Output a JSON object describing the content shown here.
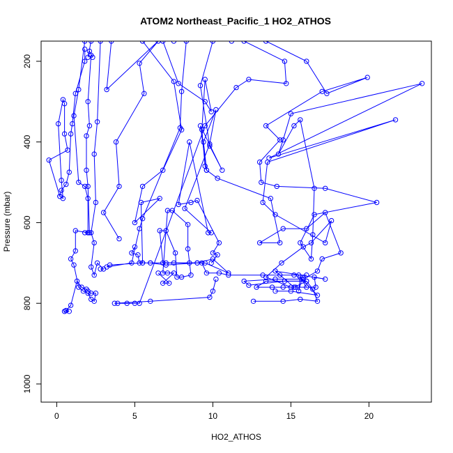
{
  "chart_data": {
    "type": "line",
    "title": "ATOM2 Northeast_Pacific_1 HO2_ATHOS",
    "xlabel": "HO2_ATHOS",
    "ylabel": "Pressure (mbar)",
    "xlim": [
      -1.0,
      24.0
    ],
    "ylim": [
      1045,
      150
    ],
    "y_inverted": true,
    "x_ticks": [
      0,
      5,
      10,
      15,
      20
    ],
    "y_ticks": [
      200,
      400,
      600,
      800,
      1000
    ],
    "grid": false,
    "legend": "none",
    "color": "#0000ff",
    "marker": "open-circle",
    "series": [
      {
        "values": [
          [
            1.8,
            150
          ],
          [
            1.4,
            270
          ],
          [
            1.1,
            335
          ],
          [
            1.4,
            500
          ],
          [
            1.8,
            510
          ],
          [
            2.0,
            540
          ],
          [
            2.0,
            625
          ],
          [
            1.2,
            620
          ],
          [
            1.2,
            670
          ],
          [
            0.9,
            690
          ],
          [
            1.1,
            705
          ],
          [
            1.4,
            760
          ],
          [
            1.7,
            770
          ],
          [
            2.0,
            775
          ],
          [
            2.2,
            790
          ],
          [
            2.4,
            795
          ],
          [
            2.5,
            775
          ],
          [
            2.2,
            775
          ],
          [
            2.0,
            770
          ],
          [
            1.9,
            765
          ],
          [
            1.6,
            760
          ],
          [
            1.3,
            745
          ],
          [
            0.9,
            805
          ],
          [
            0.6,
            818
          ],
          [
            0.5,
            820
          ],
          [
            0.6,
            818
          ],
          [
            0.8,
            820
          ],
          [
            0.5,
            820
          ]
        ]
      },
      {
        "values": [
          [
            2.8,
            150
          ],
          [
            2.6,
            350
          ],
          [
            2.4,
            430
          ],
          [
            2.5,
            550
          ],
          [
            2.2,
            625
          ],
          [
            2.4,
            650
          ],
          [
            2.2,
            710
          ],
          [
            2.4,
            730
          ],
          [
            2.6,
            700
          ],
          [
            3.0,
            715
          ],
          [
            2.8,
            715
          ]
        ]
      },
      {
        "values": [
          [
            1.8,
            170
          ],
          [
            1.8,
            200
          ],
          [
            1.2,
            280
          ],
          [
            1.0,
            355
          ],
          [
            0.9,
            380
          ],
          [
            0.8,
            475
          ],
          [
            0.6,
            505
          ],
          [
            0.3,
            520
          ],
          [
            0.2,
            535
          ],
          [
            0.4,
            540
          ],
          [
            0.3,
            495
          ],
          [
            0.1,
            355
          ],
          [
            0.4,
            295
          ],
          [
            0.5,
            305
          ],
          [
            0.5,
            380
          ],
          [
            0.7,
            420
          ],
          [
            -0.5,
            445
          ],
          [
            0.2,
            535
          ]
        ]
      },
      {
        "values": [
          [
            2.2,
            150
          ],
          [
            2.0,
            190
          ],
          [
            2.1,
            175
          ],
          [
            2.3,
            190
          ],
          [
            2.2,
            185
          ],
          [
            2.0,
            300
          ],
          [
            2.1,
            360
          ],
          [
            1.9,
            385
          ],
          [
            1.9,
            470
          ],
          [
            2.0,
            510
          ],
          [
            2.1,
            625
          ],
          [
            2.0,
            625
          ],
          [
            1.8,
            625
          ]
        ]
      },
      {
        "values": [
          [
            3.5,
            150
          ],
          [
            3.2,
            270
          ],
          [
            6.5,
            150
          ],
          [
            5.3,
            205
          ],
          [
            5.6,
            280
          ],
          [
            3.8,
            400
          ],
          [
            4.0,
            510
          ],
          [
            3.0,
            575
          ],
          [
            4.0,
            640
          ]
        ]
      },
      {
        "values": [
          [
            5.5,
            150
          ],
          [
            7.5,
            250
          ],
          [
            8.0,
            370
          ],
          [
            6.8,
            470
          ],
          [
            5.5,
            510
          ],
          [
            5.0,
            600
          ],
          [
            6.6,
            540
          ],
          [
            5.4,
            550
          ],
          [
            5.5,
            700
          ],
          [
            5.3,
            700
          ],
          [
            5.2,
            680
          ],
          [
            4.8,
            675
          ],
          [
            5.0,
            660
          ]
        ]
      },
      {
        "values": [
          [
            6.8,
            150
          ],
          [
            7.8,
            255
          ],
          [
            9.5,
            300
          ],
          [
            9.9,
            325
          ],
          [
            9.5,
            245
          ],
          [
            9.3,
            370
          ],
          [
            9.5,
            460
          ],
          [
            9.6,
            470
          ],
          [
            9.4,
            400
          ],
          [
            10.2,
            320
          ],
          [
            9.8,
            405
          ],
          [
            8.2,
            565
          ],
          [
            9.9,
            625
          ],
          [
            9.7,
            625
          ],
          [
            8.5,
            400
          ],
          [
            7.8,
            555
          ],
          [
            8.6,
            550
          ],
          [
            9.0,
            545
          ],
          [
            10.4,
            650
          ],
          [
            10.0,
            675
          ],
          [
            10.3,
            680
          ],
          [
            9.9,
            700
          ]
        ]
      },
      {
        "values": [
          [
            7.5,
            150
          ],
          [
            8.3,
            150
          ],
          [
            8.0,
            275
          ],
          [
            7.9,
            365
          ],
          [
            5.5,
            590
          ],
          [
            5.3,
            615
          ],
          [
            4.8,
            700
          ],
          [
            3.2,
            710
          ],
          [
            3.4,
            705
          ],
          [
            5.5,
            700
          ],
          [
            6.0,
            700
          ],
          [
            7.0,
            705
          ],
          [
            9.0,
            700
          ],
          [
            10.0,
            690
          ],
          [
            11.0,
            725
          ],
          [
            9.5,
            700
          ],
          [
            6.8,
            700
          ],
          [
            6.6,
            620
          ],
          [
            7.0,
            620
          ],
          [
            7.6,
            675
          ],
          [
            7.7,
            735
          ],
          [
            8.0,
            735
          ],
          [
            8.6,
            730
          ],
          [
            8.4,
            665
          ],
          [
            8.4,
            605
          ],
          [
            7.4,
            570
          ],
          [
            7.1,
            570
          ],
          [
            6.8,
            725
          ],
          [
            7.1,
            725
          ],
          [
            7.5,
            725
          ],
          [
            6.8,
            750
          ],
          [
            7.2,
            750
          ],
          [
            6.5,
            725
          ]
        ]
      },
      {
        "values": [
          [
            11.2,
            150
          ],
          [
            12.0,
            150
          ],
          [
            14.6,
            200
          ],
          [
            14.7,
            255
          ],
          [
            12.3,
            245
          ],
          [
            11.5,
            265
          ],
          [
            9.5,
            360
          ],
          [
            5.3,
            800
          ],
          [
            5.0,
            800
          ],
          [
            4.5,
            800
          ],
          [
            3.9,
            800
          ],
          [
            3.7,
            800
          ],
          [
            6.0,
            795
          ],
          [
            9.8,
            785
          ],
          [
            10.0,
            770
          ],
          [
            10.2,
            740
          ]
        ]
      },
      {
        "values": [
          [
            10.0,
            150
          ],
          [
            9.2,
            260
          ],
          [
            9.8,
            410
          ],
          [
            10.6,
            470
          ],
          [
            9.2,
            360
          ],
          [
            9.6,
            470
          ],
          [
            10.3,
            490
          ],
          [
            13.7,
            540
          ],
          [
            14.3,
            650
          ],
          [
            13.0,
            650
          ],
          [
            14.5,
            615
          ],
          [
            16.0,
            615
          ],
          [
            17.2,
            575
          ],
          [
            18.2,
            675
          ],
          [
            17.0,
            690
          ],
          [
            16.7,
            720
          ],
          [
            15.8,
            740
          ],
          [
            14.0,
            740
          ],
          [
            12.0,
            745
          ],
          [
            12.3,
            755
          ],
          [
            14.6,
            745
          ],
          [
            16.0,
            745
          ],
          [
            16.4,
            765
          ],
          [
            16.7,
            795
          ],
          [
            15.6,
            790
          ],
          [
            14.5,
            795
          ],
          [
            12.6,
            795
          ]
        ]
      },
      {
        "values": [
          [
            13.4,
            150
          ],
          [
            16.0,
            200
          ],
          [
            17.3,
            280
          ],
          [
            19.9,
            240
          ],
          [
            17.0,
            275
          ],
          [
            13.4,
            360
          ],
          [
            14.3,
            395
          ],
          [
            13.0,
            450
          ],
          [
            13.1,
            500
          ],
          [
            14.1,
            510
          ],
          [
            17.2,
            515
          ],
          [
            20.5,
            550
          ],
          [
            16.5,
            580
          ],
          [
            15.6,
            650
          ],
          [
            16.3,
            690
          ],
          [
            16.4,
            630
          ],
          [
            16.5,
            515
          ],
          [
            15.6,
            345
          ],
          [
            15.2,
            360
          ],
          [
            14.2,
            430
          ],
          [
            14.5,
            395
          ],
          [
            15.0,
            330
          ],
          [
            23.4,
            255
          ],
          [
            13.6,
            440
          ],
          [
            21.7,
            345
          ],
          [
            13.5,
            450
          ],
          [
            13.2,
            550
          ],
          [
            14.0,
            580
          ],
          [
            17.2,
            650
          ],
          [
            17.6,
            595
          ],
          [
            16.3,
            650
          ],
          [
            15.8,
            660
          ],
          [
            14.4,
            700
          ],
          [
            13.4,
            735
          ],
          [
            15.0,
            760
          ],
          [
            16.6,
            760
          ],
          [
            16.5,
            735
          ],
          [
            17.2,
            740
          ],
          [
            14.0,
            720
          ],
          [
            15.2,
            760
          ],
          [
            16.0,
            745
          ],
          [
            13.4,
            745
          ],
          [
            12.8,
            760
          ],
          [
            13.8,
            760
          ],
          [
            14.5,
            760
          ],
          [
            15.3,
            760
          ],
          [
            16.0,
            760
          ],
          [
            15.6,
            735
          ],
          [
            15.5,
            770
          ],
          [
            15.7,
            740
          ],
          [
            16.7,
            780
          ],
          [
            15.0,
            770
          ],
          [
            14.0,
            770
          ]
        ]
      },
      {
        "values": [
          [
            6.0,
            700
          ],
          [
            7.0,
            700
          ],
          [
            7.5,
            700
          ],
          [
            8.5,
            700
          ],
          [
            9.0,
            700
          ],
          [
            9.3,
            700
          ],
          [
            9.6,
            725
          ],
          [
            10.4,
            725
          ],
          [
            11.0,
            730
          ],
          [
            13.2,
            730
          ],
          [
            14.3,
            730
          ],
          [
            15.5,
            730
          ],
          [
            16.0,
            730
          ],
          [
            15.2,
            730
          ]
        ]
      }
    ]
  }
}
